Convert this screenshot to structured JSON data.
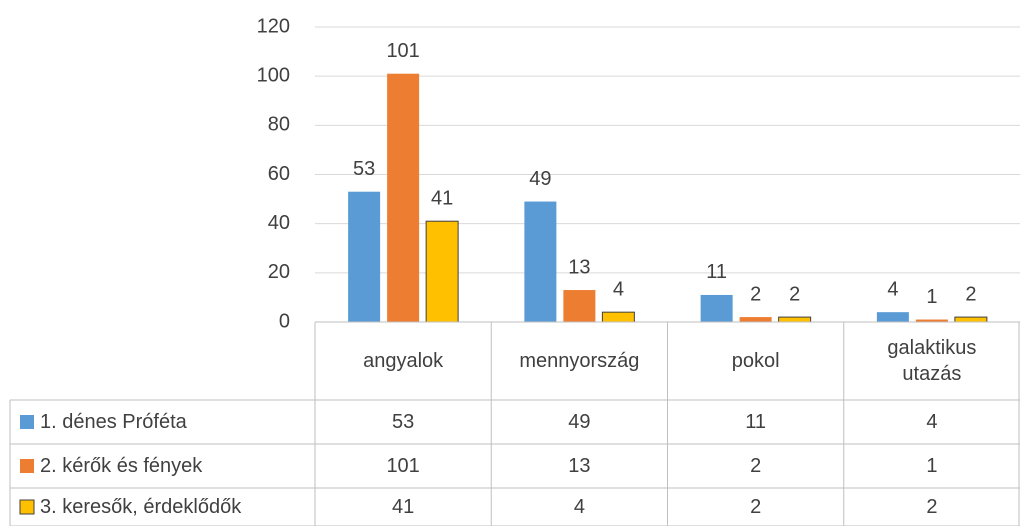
{
  "chart_data": {
    "type": "bar",
    "categories": [
      "angyalok",
      "mennyország",
      "pokol",
      "galaktikus utazás"
    ],
    "series": [
      {
        "name": "1. dénes Próféta",
        "color": "#5b9bd5",
        "values": [
          53,
          49,
          11,
          4
        ]
      },
      {
        "name": "2. kérők és fények",
        "color": "#ed7d31",
        "values": [
          101,
          13,
          2,
          1
        ]
      },
      {
        "name": "3. keresők, érdeklődők",
        "color": "#ffc000",
        "values": [
          41,
          4,
          2,
          2
        ]
      }
    ],
    "ylim": [
      0,
      120
    ],
    "yticks": [
      0,
      20,
      40,
      60,
      80,
      100,
      120
    ],
    "grid": true,
    "data_table": true
  }
}
